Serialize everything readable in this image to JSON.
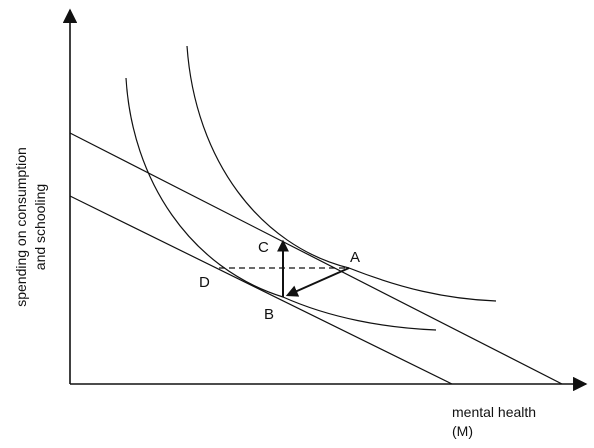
{
  "axes": {
    "y_label_line1": "spending on consumption",
    "y_label_line2": "and schooling",
    "x_label_line1": "mental health",
    "x_label_line2": "(M)"
  },
  "points": {
    "A": "A",
    "B": "B",
    "C": "C",
    "D": "D"
  },
  "colors": {
    "ink": "#111111",
    "background": "#ffffff"
  }
}
